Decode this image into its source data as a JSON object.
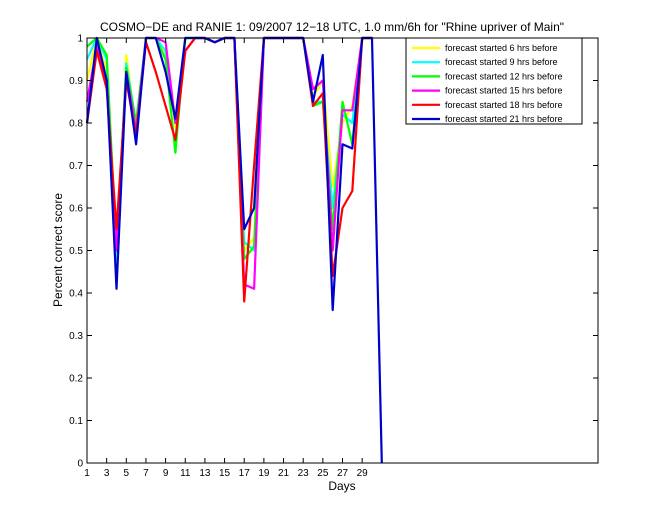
{
  "chart_data": {
    "type": "line",
    "title": "COSMO−DE and RANIE 1: 09/2007 12−18 UTC, 1.0 mm/6h for \"Rhine upriver of Main\"",
    "xlabel": "Days",
    "ylabel": "Percent correct score",
    "xlim": [
      1,
      53
    ],
    "ylim": [
      0,
      1
    ],
    "xticks": [
      1,
      3,
      5,
      7,
      9,
      11,
      13,
      15,
      17,
      19,
      21,
      23,
      25,
      27,
      29
    ],
    "yticks": [
      0,
      0.1,
      0.2,
      0.3,
      0.4,
      0.5,
      0.6,
      0.7,
      0.8,
      0.9,
      1
    ],
    "ytick_labels": [
      "0",
      "0.1",
      "0.2",
      "0.3",
      "0.4",
      "0.5",
      "0.6",
      "0.7",
      "0.8",
      "0.9",
      "1"
    ],
    "legend_position": "top-right",
    "series": [
      {
        "name": "forecast started 6 hrs before",
        "color": "#ffff00",
        "points": [
          [
            1,
            0.9
          ],
          [
            2,
            1.0
          ],
          [
            3,
            0.92
          ],
          [
            4,
            0.45
          ],
          [
            5,
            0.96
          ],
          [
            6,
            0.78
          ],
          [
            7,
            1.0
          ],
          [
            8,
            1.0
          ],
          [
            9,
            0.96
          ],
          [
            10,
            0.79
          ],
          [
            11,
            1.0
          ],
          [
            12,
            1.0
          ],
          [
            13,
            1.0
          ],
          [
            14,
            0.99
          ],
          [
            15,
            1.0
          ],
          [
            16,
            1.0
          ],
          [
            17,
            0.5
          ],
          [
            18,
            0.53
          ],
          [
            19,
            1.0
          ],
          [
            20,
            1.0
          ],
          [
            21,
            1.0
          ],
          [
            22,
            1.0
          ],
          [
            23,
            1.0
          ],
          [
            24,
            0.86
          ],
          [
            25,
            0.9
          ],
          [
            26,
            0.65
          ],
          [
            27,
            0.8
          ],
          [
            28,
            0.84
          ],
          [
            29,
            1.0
          ],
          [
            30,
            1.0
          ]
        ]
      },
      {
        "name": "forecast started 9 hrs before",
        "color": "#00ffff",
        "points": [
          [
            1,
            0.95
          ],
          [
            2,
            1.0
          ],
          [
            3,
            0.95
          ],
          [
            4,
            0.48
          ],
          [
            5,
            0.94
          ],
          [
            6,
            0.8
          ],
          [
            7,
            1.0
          ],
          [
            8,
            1.0
          ],
          [
            9,
            0.97
          ],
          [
            10,
            0.8
          ],
          [
            11,
            1.0
          ],
          [
            12,
            1.0
          ],
          [
            13,
            1.0
          ],
          [
            14,
            0.99
          ],
          [
            15,
            1.0
          ],
          [
            16,
            1.0
          ],
          [
            17,
            0.52
          ],
          [
            18,
            0.5
          ],
          [
            19,
            1.0
          ],
          [
            20,
            1.0
          ],
          [
            21,
            1.0
          ],
          [
            22,
            1.0
          ],
          [
            23,
            1.0
          ],
          [
            24,
            0.85
          ],
          [
            25,
            0.85
          ],
          [
            26,
            0.6
          ],
          [
            27,
            0.82
          ],
          [
            28,
            0.8
          ],
          [
            29,
            1.0
          ],
          [
            30,
            1.0
          ]
        ]
      },
      {
        "name": "forecast started 12 hrs before",
        "color": "#00ff00",
        "points": [
          [
            1,
            0.98
          ],
          [
            2,
            1.0
          ],
          [
            3,
            0.96
          ],
          [
            4,
            0.5
          ],
          [
            5,
            0.93
          ],
          [
            6,
            0.8
          ],
          [
            7,
            1.0
          ],
          [
            8,
            1.0
          ],
          [
            9,
            0.95
          ],
          [
            10,
            0.73
          ],
          [
            11,
            1.0
          ],
          [
            12,
            1.0
          ],
          [
            13,
            1.0
          ],
          [
            14,
            0.99
          ],
          [
            15,
            1.0
          ],
          [
            16,
            1.0
          ],
          [
            17,
            0.48
          ],
          [
            18,
            0.51
          ],
          [
            19,
            1.0
          ],
          [
            20,
            1.0
          ],
          [
            21,
            1.0
          ],
          [
            22,
            1.0
          ],
          [
            23,
            1.0
          ],
          [
            24,
            0.84
          ],
          [
            25,
            0.85
          ],
          [
            26,
            0.55
          ],
          [
            27,
            0.85
          ],
          [
            28,
            0.75
          ],
          [
            29,
            1.0
          ],
          [
            30,
            1.0
          ]
        ]
      },
      {
        "name": "forecast started 15 hrs before",
        "color": "#ff00ff",
        "points": [
          [
            1,
            0.85
          ],
          [
            2,
            0.98
          ],
          [
            3,
            0.9
          ],
          [
            4,
            0.5
          ],
          [
            5,
            0.92
          ],
          [
            6,
            0.78
          ],
          [
            7,
            1.0
          ],
          [
            8,
            1.0
          ],
          [
            9,
            0.99
          ],
          [
            10,
            0.8
          ],
          [
            11,
            0.97
          ],
          [
            12,
            1.0
          ],
          [
            13,
            1.0
          ],
          [
            14,
            0.99
          ],
          [
            15,
            1.0
          ],
          [
            16,
            1.0
          ],
          [
            17,
            0.42
          ],
          [
            18,
            0.41
          ],
          [
            19,
            1.0
          ],
          [
            20,
            1.0
          ],
          [
            21,
            1.0
          ],
          [
            22,
            1.0
          ],
          [
            23,
            1.0
          ],
          [
            24,
            0.88
          ],
          [
            25,
            0.9
          ],
          [
            26,
            0.5
          ],
          [
            27,
            0.83
          ],
          [
            28,
            0.83
          ],
          [
            29,
            1.0
          ],
          [
            30,
            1.0
          ]
        ]
      },
      {
        "name": "forecast started 18 hrs before",
        "color": "#ff0000",
        "points": [
          [
            1,
            0.8
          ],
          [
            2,
            0.97
          ],
          [
            3,
            0.88
          ],
          [
            4,
            0.55
          ],
          [
            5,
            0.9
          ],
          [
            6,
            0.77
          ],
          [
            7,
            0.99
          ],
          [
            8,
            0.92
          ],
          [
            9,
            0.84
          ],
          [
            10,
            0.76
          ],
          [
            11,
            0.97
          ],
          [
            12,
            1.0
          ],
          [
            13,
            1.0
          ],
          [
            14,
            0.99
          ],
          [
            15,
            1.0
          ],
          [
            16,
            1.0
          ],
          [
            17,
            0.38
          ],
          [
            18,
            0.7
          ],
          [
            19,
            1.0
          ],
          [
            20,
            1.0
          ],
          [
            21,
            1.0
          ],
          [
            22,
            1.0
          ],
          [
            23,
            1.0
          ],
          [
            24,
            0.84
          ],
          [
            25,
            0.87
          ],
          [
            26,
            0.44
          ],
          [
            27,
            0.6
          ],
          [
            28,
            0.64
          ],
          [
            29,
            1.0
          ],
          [
            30,
            1.0
          ]
        ]
      },
      {
        "name": "forecast started 21 hrs before",
        "color": "#0000cc",
        "points": [
          [
            1,
            0.8
          ],
          [
            2,
            1.0
          ],
          [
            3,
            0.9
          ],
          [
            4,
            0.41
          ],
          [
            5,
            0.92
          ],
          [
            6,
            0.75
          ],
          [
            7,
            1.0
          ],
          [
            8,
            1.0
          ],
          [
            9,
            0.92
          ],
          [
            10,
            0.81
          ],
          [
            11,
            1.0
          ],
          [
            12,
            1.0
          ],
          [
            13,
            1.0
          ],
          [
            14,
            0.99
          ],
          [
            15,
            1.0
          ],
          [
            16,
            1.0
          ],
          [
            17,
            0.55
          ],
          [
            18,
            0.6
          ],
          [
            19,
            1.0
          ],
          [
            20,
            1.0
          ],
          [
            21,
            1.0
          ],
          [
            22,
            1.0
          ],
          [
            23,
            1.0
          ],
          [
            24,
            0.85
          ],
          [
            25,
            0.96
          ],
          [
            26,
            0.36
          ],
          [
            27,
            0.75
          ],
          [
            28,
            0.74
          ],
          [
            29,
            1.0
          ],
          [
            30,
            1.0
          ],
          [
            31,
            0.0
          ]
        ]
      }
    ]
  }
}
